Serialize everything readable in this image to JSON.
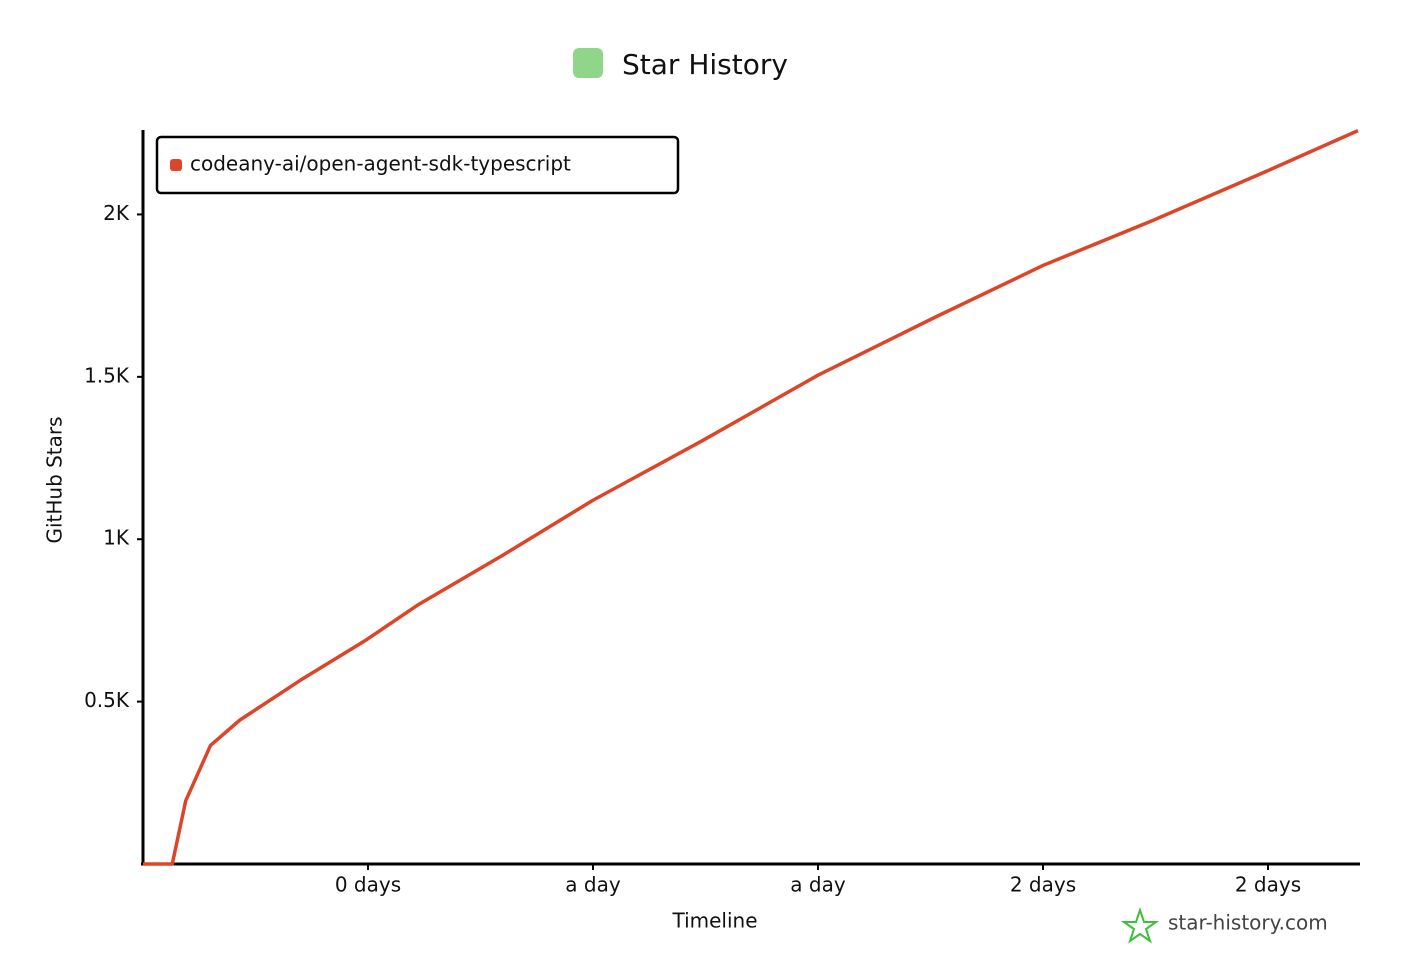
{
  "chart_data": {
    "type": "line",
    "title": "Star History",
    "x_label": "Timeline",
    "y_label": "GitHub Stars",
    "watermark": "star-history.com",
    "x": [
      0,
      1.3,
      1.9,
      3.0,
      4.3,
      7.0,
      9.9,
      12.2,
      16.0,
      20.0,
      24.9,
      30.0,
      35.1,
      40.0,
      44.9,
      50.0,
      54.0
    ],
    "series": [
      {
        "name": "codeany-ai/open-agent-sdk-typescript",
        "color": "#dd4528",
        "values": [
          0,
          0,
          195,
          365,
          443,
          566,
          689,
          797,
          951,
          1120,
          1305,
          1505,
          1680,
          1843,
          1982,
          2135,
          2258
        ]
      }
    ],
    "xlim": [
      0,
      54
    ],
    "xticks": [
      {
        "value": 10,
        "label": "0 days"
      },
      {
        "value": 20,
        "label": "a day"
      },
      {
        "value": 30,
        "label": "a day"
      },
      {
        "value": 40,
        "label": "2 days"
      },
      {
        "value": 50,
        "label": "2 days"
      }
    ],
    "ylim": [
      0,
      2260
    ],
    "yticks": [
      {
        "value": 500,
        "label": "0.5K"
      },
      {
        "value": 1000,
        "label": "1K"
      },
      {
        "value": 1500,
        "label": "1.5K"
      },
      {
        "value": 2000,
        "label": "2K"
      }
    ],
    "legend": "top-left"
  }
}
